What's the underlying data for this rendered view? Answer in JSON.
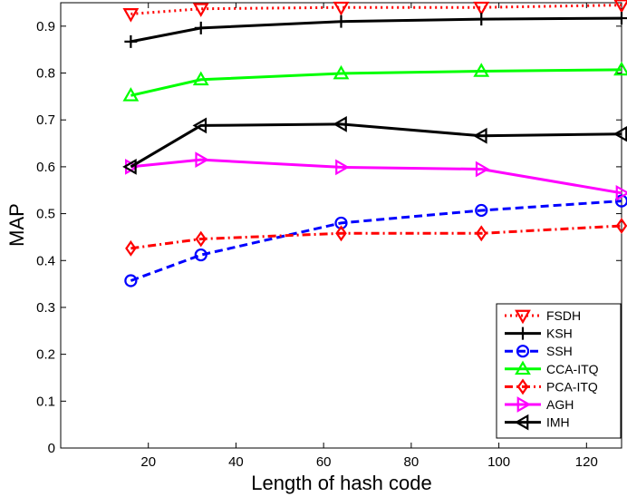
{
  "chart_data": {
    "type": "line",
    "title": "",
    "xlabel": "Length of hash code",
    "ylabel": "MAP",
    "xlim": [
      0,
      128
    ],
    "ylim": [
      0,
      0.95
    ],
    "xticks": [
      20,
      40,
      60,
      80,
      100,
      120
    ],
    "yticks": [
      0,
      0.1,
      0.2,
      0.3,
      0.4,
      0.5,
      0.6,
      0.7,
      0.8,
      0.9
    ],
    "ytick_labels": [
      "0",
      "0.1",
      "0.2",
      "0.3",
      "0.4",
      "0.5",
      "0.6",
      "0.7",
      "0.8",
      "0.9"
    ],
    "grid": false,
    "legend_position": "bottom-right",
    "x": [
      16,
      32,
      64,
      96,
      128
    ],
    "series": [
      {
        "name": "FSDH",
        "values": [
          0.926,
          0.937,
          0.94,
          0.94,
          0.945
        ],
        "color": "#ff0000",
        "dash": "dotted",
        "marker": "triangle-down"
      },
      {
        "name": "KSH",
        "values": [
          0.867,
          0.896,
          0.91,
          0.915,
          0.917
        ],
        "color": "#000000",
        "dash": "solid",
        "marker": "plus"
      },
      {
        "name": "SSH",
        "values": [
          0.357,
          0.412,
          0.48,
          0.507,
          0.527
        ],
        "color": "#0000ff",
        "dash": "dashed",
        "marker": "circle"
      },
      {
        "name": "CCA-ITQ",
        "values": [
          0.752,
          0.786,
          0.799,
          0.804,
          0.807
        ],
        "color": "#00ff00",
        "dash": "solid",
        "marker": "triangle-up"
      },
      {
        "name": "PCA-ITQ",
        "values": [
          0.426,
          0.446,
          0.458,
          0.458,
          0.474
        ],
        "color": "#ff0000",
        "dash": "dashdot",
        "marker": "diamond"
      },
      {
        "name": "AGH",
        "values": [
          0.6,
          0.615,
          0.599,
          0.595,
          0.544
        ],
        "color": "#ff00ff",
        "dash": "solid",
        "marker": "triangle-right"
      },
      {
        "name": "IMH",
        "values": [
          0.6,
          0.688,
          0.691,
          0.666,
          0.67
        ],
        "color": "#000000",
        "dash": "solid",
        "marker": "triangle-left"
      }
    ]
  }
}
